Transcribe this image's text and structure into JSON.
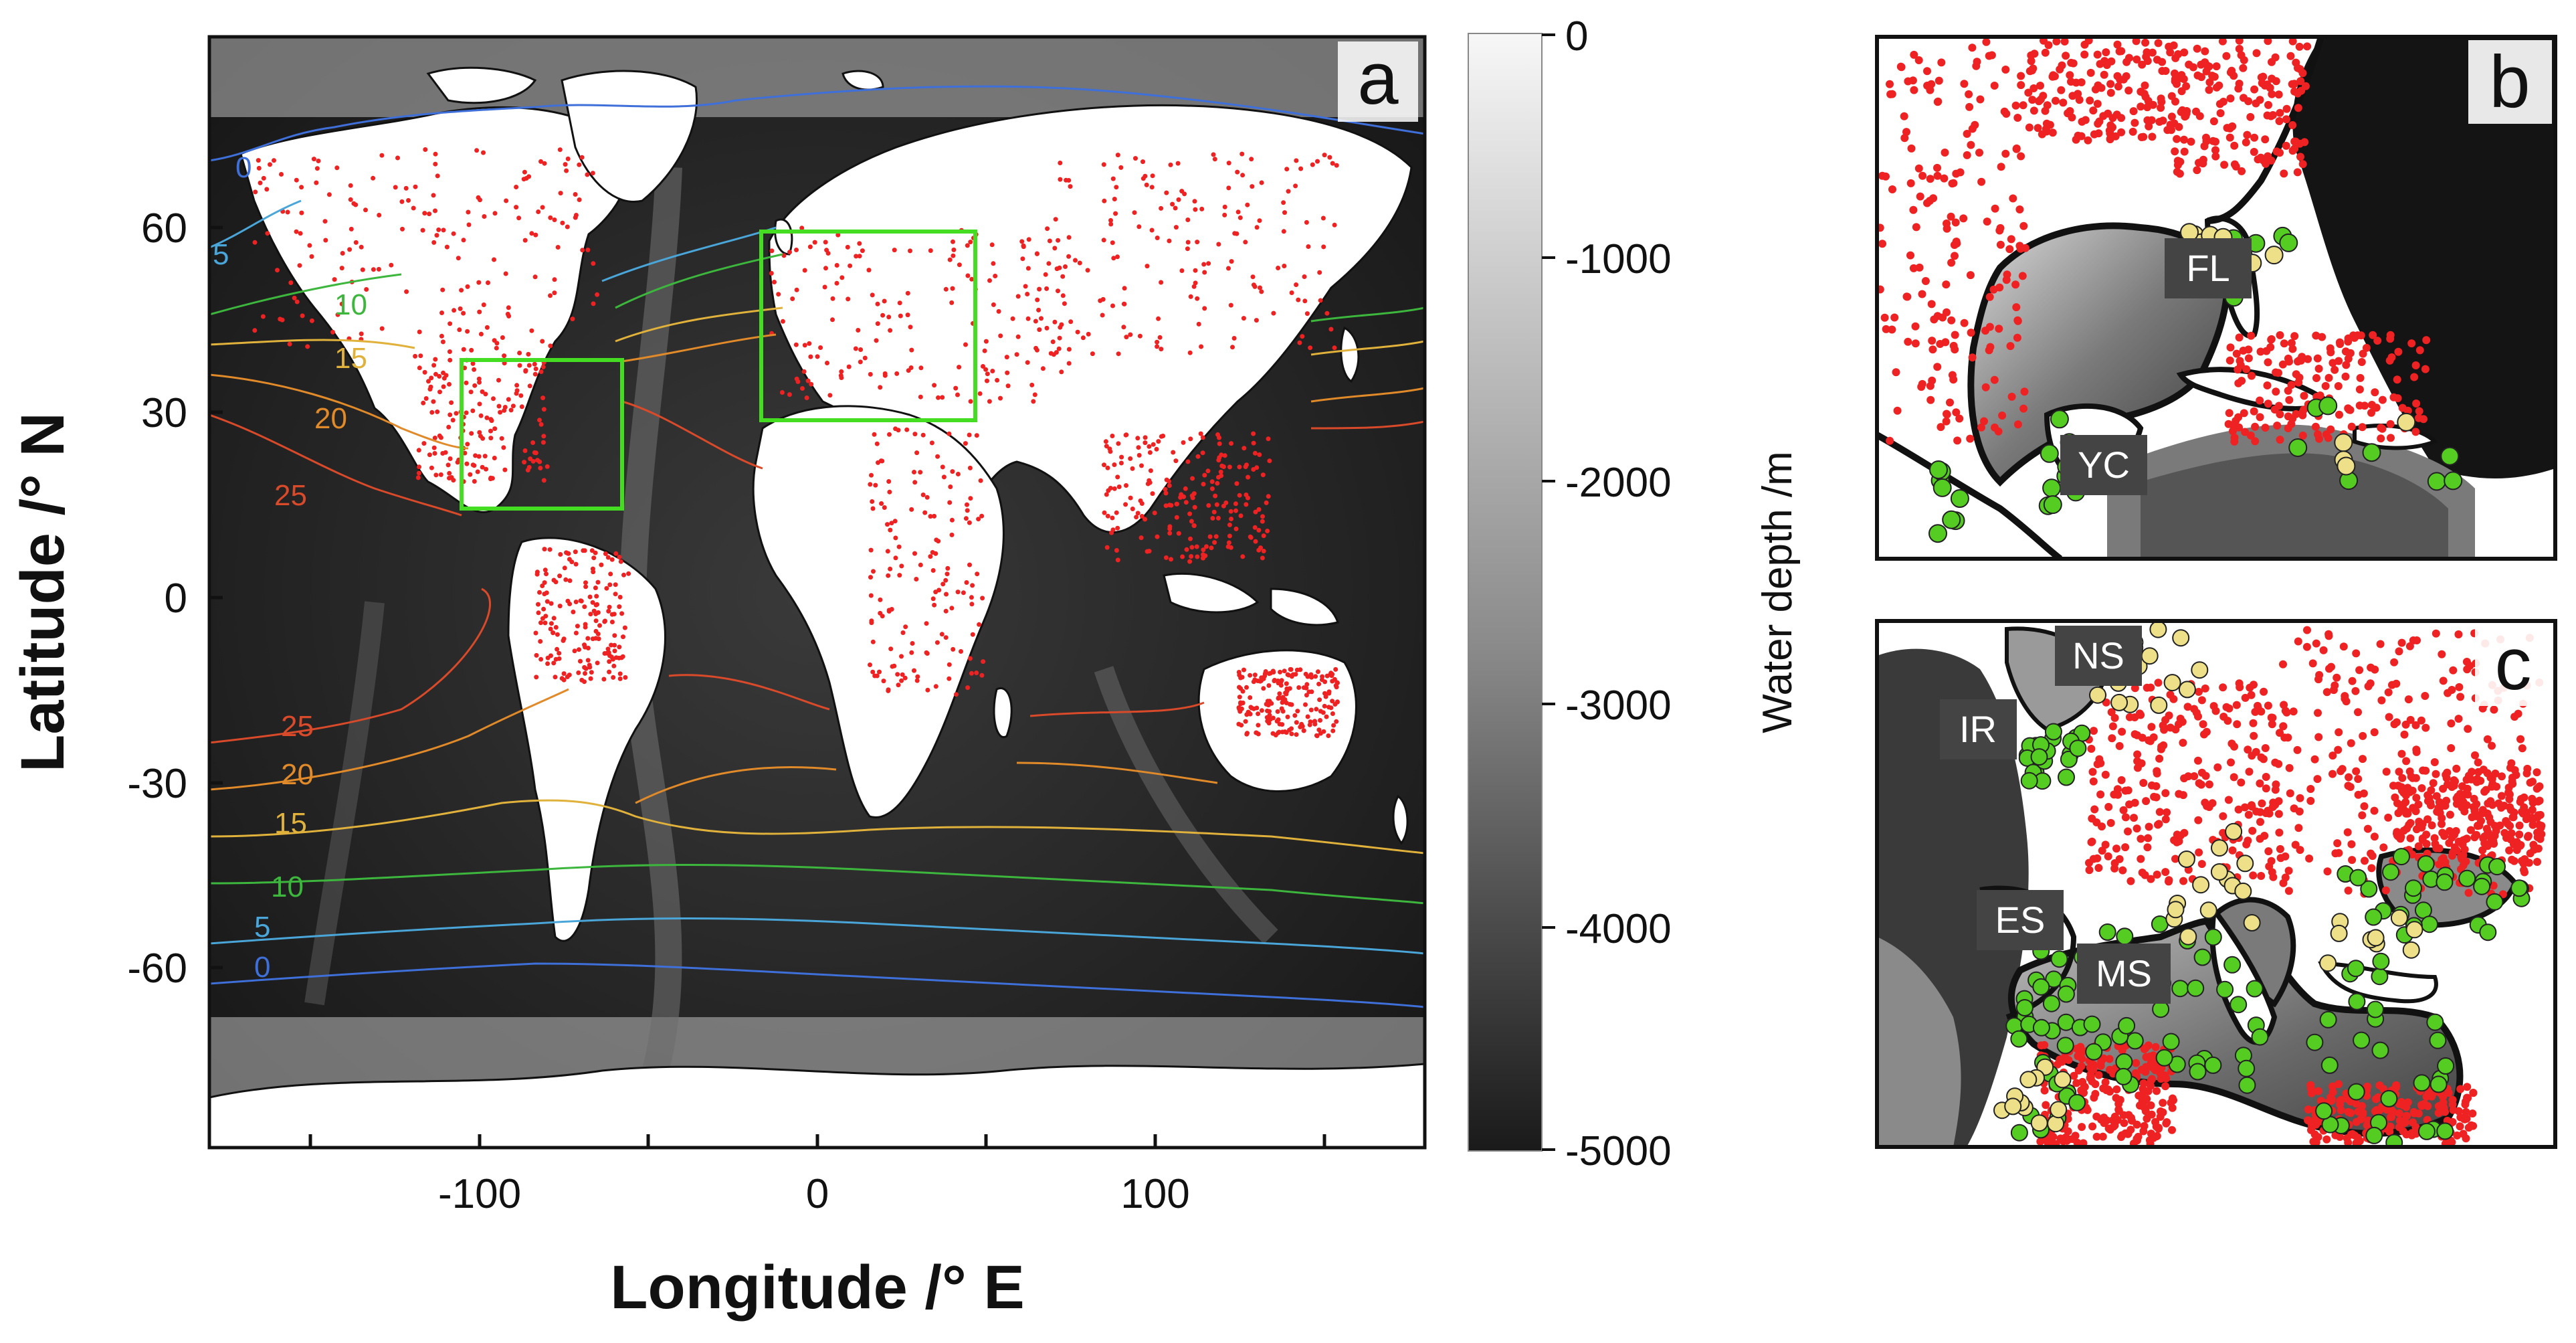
{
  "panel_a": {
    "letter": "a",
    "xlabel": "Longitude /° E",
    "ylabel": "Latitude /° N",
    "xticks": [
      "-100",
      "0",
      "100"
    ],
    "yticks": [
      "60",
      "30",
      "0",
      "-30",
      "-60"
    ],
    "xlim": [
      -180,
      180
    ],
    "ylim": [
      -90,
      90
    ],
    "contour_labels_north": [
      "0",
      "5",
      "10",
      "15",
      "20",
      "25"
    ],
    "contour_labels_south": [
      "25",
      "20",
      "15",
      "10",
      "5",
      "0"
    ],
    "contour_colors": {
      "0": "#3f6fd8",
      "5": "#4aa6d8",
      "10": "#3db63d",
      "15": "#e0b23c",
      "20": "#e08a2a",
      "25": "#d84a2a"
    },
    "box_color": "#44dd22",
    "boxes": [
      {
        "name": "Gulf of Mexico",
        "lon": [
          -105,
          -58
        ],
        "lat": [
          15,
          38
        ]
      },
      {
        "name": "Mediterranean",
        "lon": [
          -17,
          45
        ],
        "lat": [
          28,
          57
        ]
      }
    ]
  },
  "colorbar": {
    "label": "Water depth /m",
    "ticks": [
      "0",
      "-1000",
      "-2000",
      "-3000",
      "-4000",
      "-5000"
    ],
    "range": [
      -5000,
      0
    ]
  },
  "panel_b": {
    "letter": "b",
    "regions": [
      "FL",
      "YC"
    ]
  },
  "panel_c": {
    "letter": "c",
    "regions": [
      "NS",
      "IR",
      "ES",
      "MS"
    ]
  },
  "marker_colors": {
    "occurrence": "#ee2222",
    "green_site": "#55cc22",
    "yellow_site": "#eee088"
  }
}
